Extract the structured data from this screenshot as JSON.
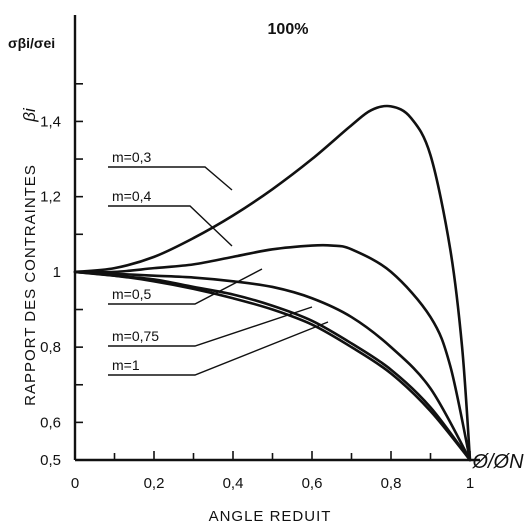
{
  "chart_data": {
    "type": "line",
    "title": "100%",
    "xlabel": "ANGLE REDUIT",
    "xlabel_symbol": "Ø/ØN",
    "ylabel": "RAPPORT DES CONTRAINTES",
    "ylabel_symbol": "βi",
    "ylabel_top": "σβi/σei",
    "xlim": [
      0,
      1
    ],
    "ylim": [
      0.5,
      1.55
    ],
    "x_ticks": [
      "0",
      "0,2",
      "0,4",
      "0,6",
      "0,8",
      "1"
    ],
    "y_ticks": [
      "0,5",
      "0,6",
      "0,8",
      "1",
      "1,2",
      "1,4"
    ],
    "grid": false,
    "series": [
      {
        "name": "m=0,3",
        "x": [
          0,
          0.1,
          0.2,
          0.3,
          0.4,
          0.5,
          0.6,
          0.7,
          0.75,
          0.8,
          0.85,
          0.9,
          0.95,
          0.98,
          1
        ],
        "y": [
          1.0,
          1.01,
          1.04,
          1.09,
          1.15,
          1.22,
          1.3,
          1.39,
          1.43,
          1.44,
          1.41,
          1.31,
          1.06,
          0.8,
          0.5
        ]
      },
      {
        "name": "m=0,4",
        "x": [
          0,
          0.1,
          0.2,
          0.3,
          0.4,
          0.5,
          0.6,
          0.65,
          0.7,
          0.8,
          0.9,
          0.95,
          1
        ],
        "y": [
          1.0,
          1.0,
          1.01,
          1.02,
          1.04,
          1.06,
          1.07,
          1.07,
          1.06,
          1.0,
          0.88,
          0.75,
          0.5
        ]
      },
      {
        "name": "m=0,5",
        "x": [
          0,
          0.1,
          0.2,
          0.3,
          0.4,
          0.5,
          0.6,
          0.7,
          0.8,
          0.9,
          1
        ],
        "y": [
          1.0,
          0.995,
          0.99,
          0.985,
          0.975,
          0.96,
          0.93,
          0.88,
          0.8,
          0.69,
          0.5
        ]
      },
      {
        "name": "m=0,75",
        "x": [
          0,
          0.1,
          0.2,
          0.3,
          0.4,
          0.5,
          0.6,
          0.7,
          0.8,
          0.9,
          1
        ],
        "y": [
          1.0,
          0.99,
          0.98,
          0.96,
          0.94,
          0.91,
          0.87,
          0.81,
          0.74,
          0.64,
          0.5
        ]
      },
      {
        "name": "m=1",
        "x": [
          0,
          0.1,
          0.2,
          0.3,
          0.4,
          0.5,
          0.6,
          0.7,
          0.8,
          0.9,
          1
        ],
        "y": [
          1.0,
          0.99,
          0.975,
          0.955,
          0.93,
          0.9,
          0.86,
          0.8,
          0.73,
          0.63,
          0.5
        ]
      }
    ],
    "series_labels": [
      "m=0,3",
      "m=0,4",
      "m=0,5",
      "m=0,75",
      "m=1"
    ]
  }
}
